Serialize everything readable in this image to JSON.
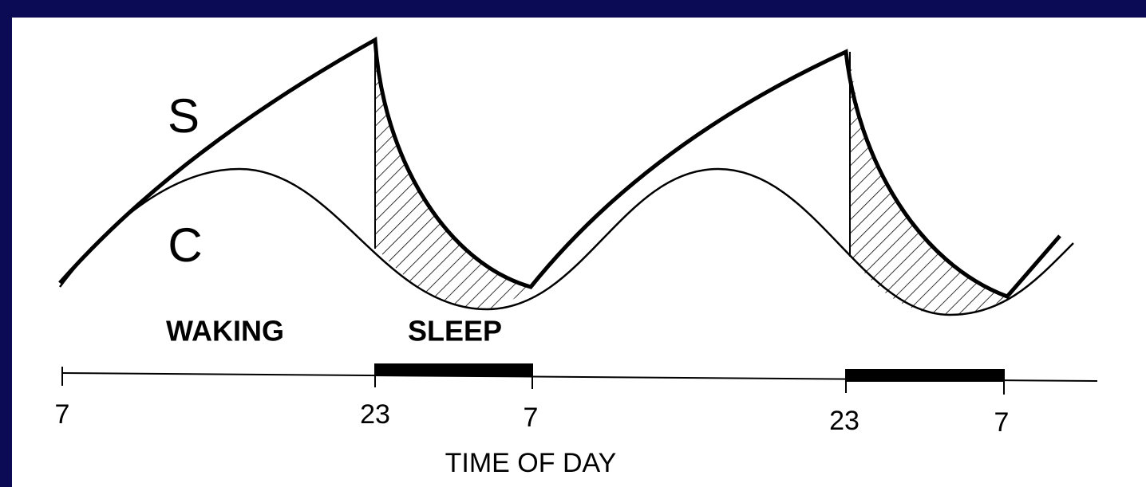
{
  "labels": {
    "s": "S",
    "c": "C",
    "waking": "WAKING",
    "sleep": "SLEEP"
  },
  "axis": {
    "ticks": [
      "7",
      "23",
      "7",
      "23",
      "7"
    ],
    "title": "TIME OF DAY"
  }
}
